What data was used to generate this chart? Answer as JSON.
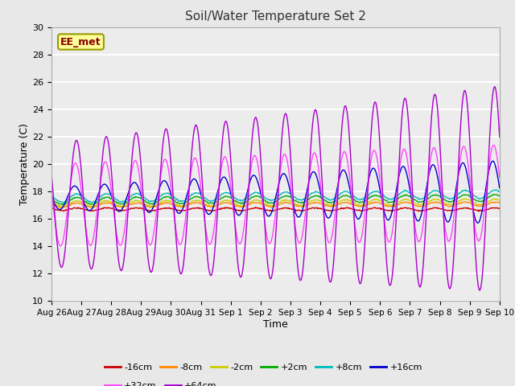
{
  "title": "Soil/Water Temperature Set 2",
  "xlabel": "Time",
  "ylabel": "Temperature (C)",
  "ylim": [
    10,
    30
  ],
  "yticks": [
    10,
    12,
    14,
    16,
    18,
    20,
    22,
    24,
    26,
    28,
    30
  ],
  "fig_bg_color": "#e8e8e8",
  "plot_bg_color": "#ececec",
  "watermark": "EE_met",
  "series_colors": {
    "-16cm": "#cc0000",
    "-8cm": "#ff8800",
    "-2cm": "#cccc00",
    "+2cm": "#00aa00",
    "+8cm": "#00bbbb",
    "+16cm": "#0000cc",
    "+32cm": "#ff44ff",
    "+64cm": "#aa00cc"
  },
  "xtick_labels": [
    "Aug 26",
    "Aug 27",
    "Aug 28",
    "Aug 29",
    "Aug 30",
    "Aug 31",
    "Sep 1",
    "Sep 2",
    "Sep 3",
    "Sep 4",
    "Sep 5",
    "Sep 6",
    "Sep 7",
    "Sep 8",
    "Sep 9",
    "Sep 10"
  ],
  "legend_order": [
    "-16cm",
    "-8cm",
    "-2cm",
    "+2cm",
    "+8cm",
    "+16cm",
    "+32cm",
    "+64cm"
  ]
}
